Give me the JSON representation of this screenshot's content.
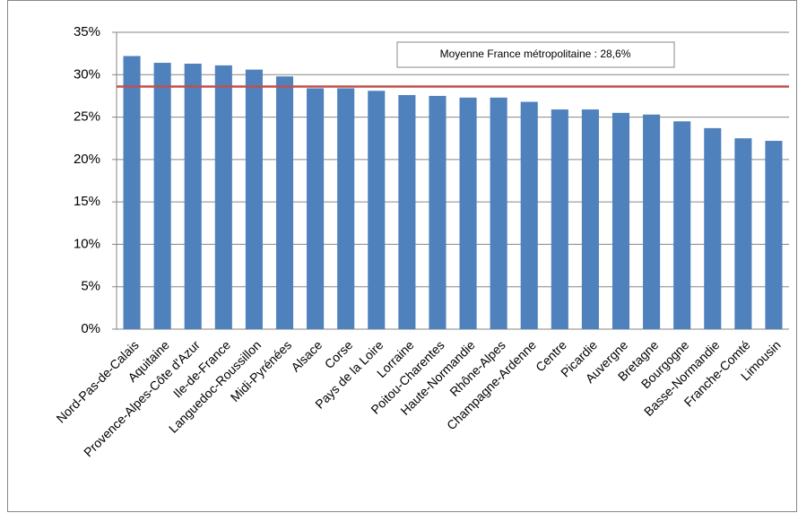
{
  "chart_data": {
    "type": "bar",
    "categories": [
      "Nord-Pas-de-Calais",
      "Aquitaine",
      "Provence-Alpes-Côte d'Azur",
      "Ile-de-France",
      "Languedoc-Roussillon",
      "Midi-Pyrénées",
      "Alsace",
      "Corse",
      "Pays de la Loire",
      "Lorraine",
      "Poitou-Charentes",
      "Haute-Normandie",
      "Rhône-Alpes",
      "Champagne-Ardenne",
      "Centre",
      "Picardie",
      "Auvergne",
      "Bretagne",
      "Bourgogne",
      "Basse-Normandie",
      "Franche-Comté",
      "Limousin"
    ],
    "values": [
      32.2,
      31.4,
      31.3,
      31.1,
      30.6,
      29.8,
      28.4,
      28.4,
      28.1,
      27.6,
      27.5,
      27.3,
      27.3,
      26.8,
      25.9,
      25.9,
      25.5,
      25.3,
      24.5,
      23.7,
      22.5,
      22.2
    ],
    "color": "#4f81bd",
    "ylim": [
      0,
      35
    ],
    "yticks": [
      {
        "value": 0,
        "label": "0%"
      },
      {
        "value": 5,
        "label": "5%"
      },
      {
        "value": 10,
        "label": "10%"
      },
      {
        "value": 15,
        "label": "15%"
      },
      {
        "value": 20,
        "label": "20%"
      },
      {
        "value": 25,
        "label": "25%"
      },
      {
        "value": 30,
        "label": "30%"
      },
      {
        "value": 35,
        "label": "35%"
      }
    ],
    "grid": true,
    "average": {
      "value": 28.6,
      "label": "Moyenne France métropolitaine : 28,6%",
      "color": "#c0504d"
    }
  }
}
